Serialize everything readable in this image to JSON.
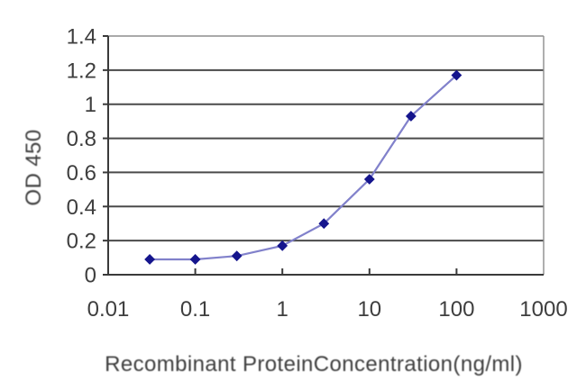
{
  "chart_data": {
    "type": "line",
    "title": "",
    "xlabel": "Recombinant ProteinConcentration(ng/ml)",
    "ylabel": "OD 450",
    "x_scale": "log",
    "xlim": [
      0.01,
      1000
    ],
    "ylim": [
      0,
      1.4
    ],
    "x_tick_values": [
      0.01,
      0.1,
      1,
      10,
      100,
      1000
    ],
    "x_tick_labels": [
      "0.01",
      "0.1",
      "1",
      "10",
      "100",
      "1000"
    ],
    "x_inner_tick_values": [
      0.1,
      1,
      10,
      100
    ],
    "y_tick_values": [
      0,
      0.2,
      0.4,
      0.6,
      0.8,
      1,
      1.2,
      1.4
    ],
    "y_tick_labels": [
      "0",
      "0.2",
      "0.4",
      "0.6",
      "0.8",
      "1",
      "1.2",
      "1.4"
    ],
    "grid": true,
    "legend": false,
    "series": [
      {
        "x": [
          0.03,
          0.1,
          0.3,
          1,
          3,
          10,
          30,
          100
        ],
        "y": [
          0.09,
          0.09,
          0.11,
          0.17,
          0.3,
          0.56,
          0.93,
          1.17
        ],
        "marker": "diamond"
      }
    ],
    "colors": {
      "line": "#8181cb",
      "marker": "#15158d",
      "gridline": "#4a4a4a",
      "axis": "#3a3a3a",
      "border": "#8d8d8d",
      "text": "#3e3e3e",
      "background": "#ffffff"
    }
  }
}
